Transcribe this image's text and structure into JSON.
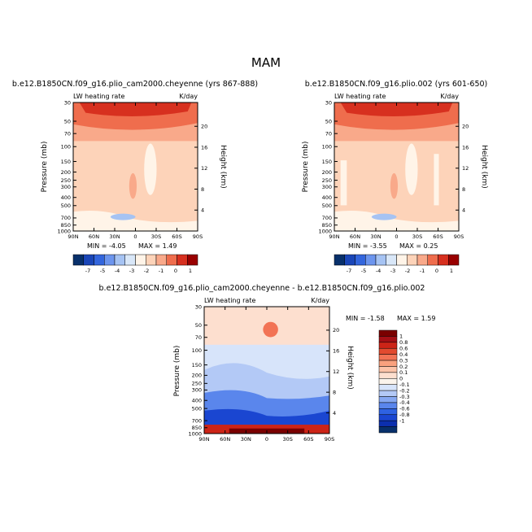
{
  "figure": {
    "title": "MAM",
    "var_label": "LW heating rate",
    "units": "K/day"
  },
  "palette": {
    "cb_top": [
      "#08306b",
      "#1a46b8",
      "#3366dd",
      "#6c95ee",
      "#a6c3f3",
      "#d9e7f8",
      "#fff4e8",
      "#fdd3b9",
      "#f9a98a",
      "#ef6d4d",
      "#d7301f",
      "#990000"
    ],
    "cb_diff": [
      "#08306b",
      "#0c2fae",
      "#1a46d1",
      "#2e62e2",
      "#5a86ec",
      "#86a8f2",
      "#b3c9f6",
      "#d7e4fa",
      "#fbf4ec",
      "#fddfcf",
      "#fcc3a8",
      "#f9a17e",
      "#f27355",
      "#e24a2f",
      "#cc2417",
      "#a50f15",
      "#7a0000"
    ],
    "background": "#ffffff"
  },
  "chart_data": [
    {
      "type": "heatmap",
      "case": "b.e12.B1850CN.f09_g16.plio_cam2000.cheyenne (yrs 867-888)",
      "title_left": "LW heating rate",
      "title_right": "K/day",
      "ylabel": "Pressure (mb)",
      "ylabel_right": "Height (km)",
      "x_ticks": [
        "90N",
        "60N",
        "30N",
        "0",
        "30S",
        "60S",
        "90S"
      ],
      "y_ticks": [
        "30",
        "50",
        "70",
        "100",
        "150",
        "200",
        "250",
        "300",
        "400",
        "500",
        "700",
        "850",
        "1000"
      ],
      "height_ticks": [
        "20",
        "16",
        "12",
        "8",
        "4"
      ],
      "ylim": [
        1000,
        30
      ],
      "xlim": [
        "90N",
        "90S"
      ],
      "min_label": "MIN = -4.05",
      "max_label": "MAX = 1.49",
      "min": -4.05,
      "max": 1.49,
      "colorbar_labels": [
        "-7",
        "-5",
        "-4",
        "-3",
        "-2",
        "-1",
        "0",
        "1"
      ]
    },
    {
      "type": "heatmap",
      "case": "b.e12.B1850CN.f09_g16.plio.002 (yrs 601-650)",
      "title_left": "LW heating rate",
      "title_right": "K/day",
      "ylabel": "Pressure (mb)",
      "ylabel_right": "Height (km)",
      "x_ticks": [
        "90N",
        "60N",
        "30N",
        "0",
        "30S",
        "60S",
        "90S"
      ],
      "y_ticks": [
        "30",
        "50",
        "70",
        "100",
        "150",
        "200",
        "250",
        "300",
        "400",
        "500",
        "700",
        "850",
        "1000"
      ],
      "height_ticks": [
        "20",
        "16",
        "12",
        "8",
        "4"
      ],
      "ylim": [
        1000,
        30
      ],
      "xlim": [
        "90N",
        "90S"
      ],
      "min_label": "MIN = -3.55",
      "max_label": "MAX = 0.25",
      "min": -3.55,
      "max": 0.25,
      "colorbar_labels": [
        "-7",
        "-5",
        "-4",
        "-3",
        "-2",
        "-1",
        "0",
        "1"
      ]
    },
    {
      "type": "heatmap",
      "case": "b.e12.B1850CN.f09_g16.plio_cam2000.cheyenne - b.e12.B1850CN.f09_g16.plio.002",
      "title_left": "LW heating rate",
      "title_right": "K/day",
      "ylabel": "Pressure (mb)",
      "ylabel_right": "Height (km)",
      "x_ticks": [
        "90N",
        "60N",
        "30N",
        "0",
        "30S",
        "60S",
        "90S"
      ],
      "y_ticks": [
        "30",
        "50",
        "70",
        "100",
        "150",
        "200",
        "250",
        "300",
        "400",
        "500",
        "700",
        "850",
        "1000"
      ],
      "height_ticks": [
        "20",
        "16",
        "12",
        "8",
        "4"
      ],
      "ylim": [
        1000,
        30
      ],
      "xlim": [
        "90N",
        "90S"
      ],
      "min_label": "MIN = -1.58",
      "max_label": "MAX = 1.59",
      "min": -1.58,
      "max": 1.59,
      "colorbar_labels": [
        "1",
        "0.8",
        "0.6",
        "0.4",
        "0.3",
        "0.2",
        "0.1",
        "0",
        "-0.1",
        "-0.2",
        "-0.3",
        "-0.4",
        "-0.6",
        "-0.8",
        "-1"
      ]
    }
  ]
}
